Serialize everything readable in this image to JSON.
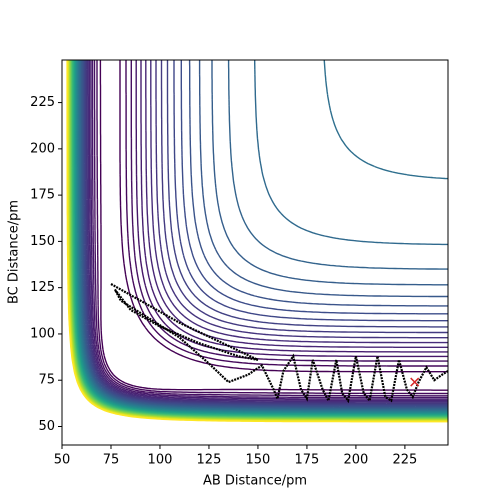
{
  "chart_data": {
    "type": "contour",
    "x_label": "AB Distance/pm",
    "y_label": "BC Distance/pm",
    "xlim": [
      50,
      247
    ],
    "ylim": [
      40,
      248
    ],
    "xticks": [
      50,
      75,
      100,
      125,
      150,
      175,
      200,
      225
    ],
    "yticks": [
      50,
      75,
      100,
      125,
      150,
      175,
      200,
      225
    ],
    "trajectory": {
      "color": "#000000",
      "x": [
        75,
        90,
        110,
        130,
        150,
        140,
        120,
        100,
        85,
        77,
        80,
        95,
        110,
        125,
        135,
        145,
        152,
        158,
        160,
        163,
        168,
        172,
        175,
        178,
        183,
        186,
        190,
        193,
        196,
        200,
        204,
        207,
        211,
        215,
        218,
        222,
        226,
        229,
        232,
        236,
        240,
        244,
        247
      ],
      "y": [
        127,
        118,
        106,
        96,
        86,
        88,
        95,
        104,
        113,
        124,
        118,
        108,
        98,
        84,
        74,
        78,
        83,
        70,
        65,
        80,
        88,
        70,
        65,
        86,
        70,
        64,
        86,
        68,
        64,
        88,
        68,
        64,
        88,
        66,
        64,
        86,
        70,
        66,
        74,
        82,
        75,
        78,
        80
      ]
    },
    "end_marker": {
      "x": 230,
      "y": 74,
      "color": "#d62728"
    }
  }
}
